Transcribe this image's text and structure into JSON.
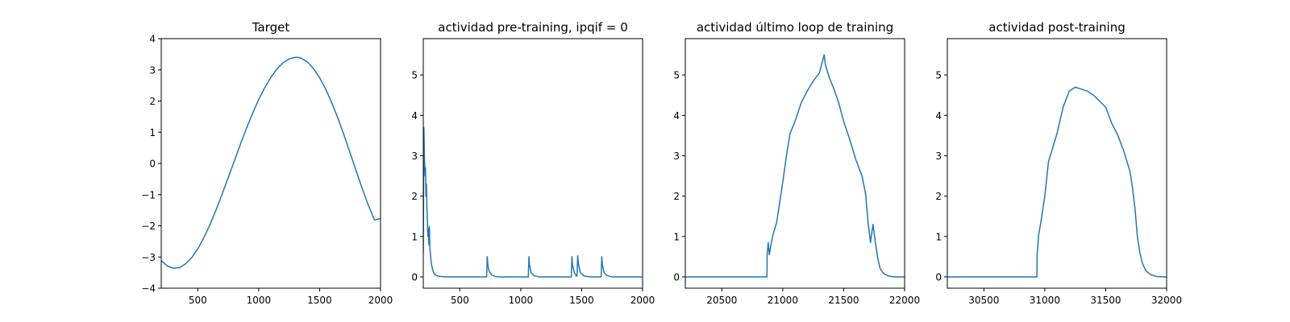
{
  "figure": {
    "background": "#ffffff",
    "line_color": "#1f77b4"
  },
  "chart_data": [
    {
      "type": "line",
      "title": "Target",
      "xlabel": "",
      "ylabel": "",
      "xlim": [
        200,
        2000
      ],
      "ylim": [
        -4,
        4
      ],
      "xticks": [
        500,
        1000,
        1500,
        2000
      ],
      "yticks": [
        -4,
        -3,
        -2,
        -1,
        0,
        1,
        2,
        3,
        4
      ],
      "ytick_labels": [
        "−4",
        "−3",
        "−2",
        "−1",
        "0",
        "1",
        "2",
        "3",
        "4"
      ],
      "grid": false,
      "series": [
        {
          "color": "#1f77b4",
          "x": [
            200,
            250,
            300,
            350,
            400,
            450,
            500,
            550,
            600,
            650,
            700,
            750,
            800,
            850,
            900,
            950,
            1000,
            1050,
            1100,
            1150,
            1200,
            1250,
            1300,
            1320,
            1350,
            1400,
            1450,
            1500,
            1550,
            1600,
            1650,
            1700,
            1750,
            1800,
            1850,
            1900,
            1950,
            2000
          ],
          "y": [
            -3.12,
            -3.29,
            -3.36,
            -3.34,
            -3.22,
            -3.02,
            -2.74,
            -2.38,
            -1.96,
            -1.49,
            -0.98,
            -0.45,
            0.08,
            0.62,
            1.13,
            1.61,
            2.05,
            2.43,
            2.76,
            3.03,
            3.23,
            3.35,
            3.4,
            3.4,
            3.37,
            3.25,
            3.04,
            2.75,
            2.38,
            1.94,
            1.45,
            0.91,
            0.34,
            -0.24,
            -0.81,
            -1.34,
            -1.81,
            -1.77
          ]
        }
      ]
    },
    {
      "type": "line",
      "title": "actividad pre-training, ipqif = 0",
      "xlabel": "",
      "ylabel": "",
      "xlim": [
        200,
        2000
      ],
      "ylim": [
        -0.28,
        5.9
      ],
      "xticks": [
        500,
        1000,
        1500,
        2000
      ],
      "yticks": [
        0,
        1,
        2,
        3,
        4,
        5
      ],
      "grid": false,
      "series": [
        {
          "color": "#1f77b4",
          "x": [
            200,
            205,
            210,
            215,
            218,
            222,
            226,
            230,
            234,
            238,
            242,
            246,
            250,
            254,
            258,
            262,
            268,
            275,
            285,
            300,
            320,
            350,
            400,
            500,
            600,
            720,
            725,
            730,
            740,
            760,
            790,
            830,
            900,
            1000,
            1062,
            1067,
            1072,
            1085,
            1110,
            1150,
            1250,
            1350,
            1415,
            1420,
            1425,
            1440,
            1455,
            1462,
            1467,
            1475,
            1490,
            1520,
            1580,
            1660,
            1665,
            1670,
            1685,
            1710,
            1750,
            1850,
            2000
          ],
          "y": [
            0.6,
            3.7,
            2.9,
            2.5,
            2.7,
            2.0,
            2.3,
            1.7,
            1.4,
            1.0,
            1.2,
            0.8,
            1.25,
            0.7,
            0.6,
            0.45,
            0.3,
            0.2,
            0.1,
            0.05,
            0.02,
            0.01,
            0.0,
            0.0,
            0.0,
            0.0,
            0.5,
            0.3,
            0.15,
            0.05,
            0.01,
            0.0,
            0.0,
            0.0,
            0.0,
            0.5,
            0.3,
            0.1,
            0.03,
            0.0,
            0.0,
            0.0,
            0.0,
            0.5,
            0.3,
            0.1,
            0.03,
            0.02,
            0.52,
            0.3,
            0.1,
            0.02,
            0.0,
            0.0,
            0.5,
            0.3,
            0.1,
            0.03,
            0.0,
            0.0,
            0.0
          ]
        }
      ]
    },
    {
      "type": "line",
      "title": "actividad último loop de training",
      "xlabel": "",
      "ylabel": "",
      "xlim": [
        20200,
        22000
      ],
      "ylim": [
        -0.28,
        5.9
      ],
      "xticks": [
        20500,
        21000,
        21500,
        22000
      ],
      "yticks": [
        0,
        1,
        2,
        3,
        4,
        5
      ],
      "grid": false,
      "series": [
        {
          "color": "#1f77b4",
          "x": [
            20200,
            20500,
            20870,
            20872,
            20880,
            20890,
            20900,
            20920,
            20950,
            20980,
            21000,
            21030,
            21060,
            21100,
            21150,
            21200,
            21250,
            21300,
            21340,
            21350,
            21380,
            21420,
            21460,
            21500,
            21550,
            21600,
            21650,
            21680,
            21700,
            21720,
            21740,
            21760,
            21780,
            21800,
            21830,
            21870,
            21920,
            22000
          ],
          "y": [
            0,
            0,
            0,
            0.55,
            0.85,
            0.55,
            0.75,
            1.05,
            1.35,
            1.95,
            2.35,
            3.0,
            3.55,
            3.85,
            4.3,
            4.6,
            4.85,
            5.05,
            5.5,
            5.25,
            4.95,
            4.65,
            4.3,
            3.85,
            3.4,
            2.9,
            2.5,
            2.05,
            1.35,
            0.85,
            1.3,
            0.85,
            0.45,
            0.2,
            0.08,
            0.02,
            0.0,
            0.0
          ]
        }
      ]
    },
    {
      "type": "line",
      "title": "actividad post-training",
      "xlabel": "",
      "ylabel": "",
      "xlim": [
        30200,
        32000
      ],
      "ylim": [
        -0.28,
        5.9
      ],
      "xticks": [
        30500,
        31000,
        31500,
        32000
      ],
      "yticks": [
        0,
        1,
        2,
        3,
        4,
        5
      ],
      "grid": false,
      "series": [
        {
          "color": "#1f77b4",
          "x": [
            30200,
            30600,
            30935,
            30937,
            30950,
            30970,
            31000,
            31030,
            31060,
            31100,
            31150,
            31200,
            31250,
            31300,
            31350,
            31400,
            31450,
            31500,
            31550,
            31600,
            31650,
            31700,
            31720,
            31740,
            31760,
            31780,
            31800,
            31830,
            31870,
            31920,
            32000
          ],
          "y": [
            0,
            0,
            0,
            0.55,
            1.05,
            1.4,
            2.0,
            2.85,
            3.15,
            3.55,
            4.2,
            4.6,
            4.7,
            4.65,
            4.6,
            4.5,
            4.35,
            4.2,
            3.8,
            3.5,
            3.1,
            2.6,
            2.2,
            1.7,
            1.0,
            0.6,
            0.35,
            0.15,
            0.05,
            0.01,
            0.0
          ]
        }
      ]
    }
  ]
}
